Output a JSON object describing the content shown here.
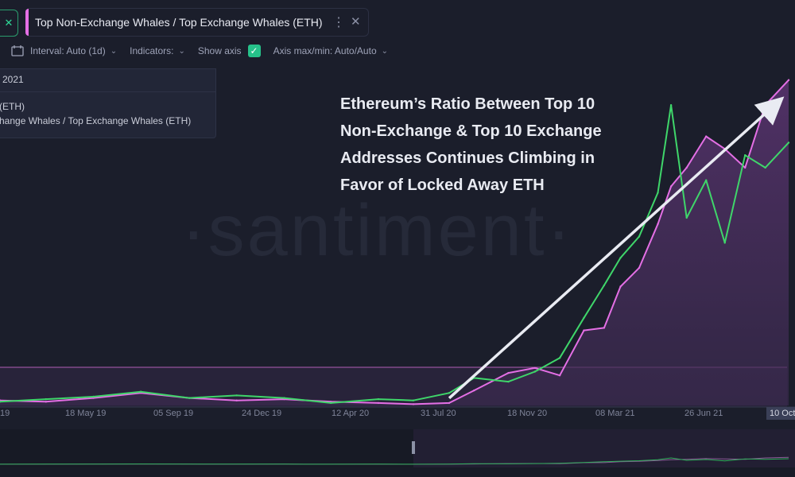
{
  "header": {
    "close_left_icon": "close-icon",
    "tab_title": "Top Non-Exchange Whales / Top Exchange Whales (ETH)",
    "tab_menu_icon": "more-vertical-icon",
    "tab_close_icon": "close-icon",
    "tab_accent": "#e46fe5"
  },
  "toolbar": {
    "interval_label": "Interval: Auto (1d)",
    "indicators_label": "Indicators:",
    "show_axis_label": "Show axis",
    "show_axis_checked": true,
    "axis_label": "Axis max/min: Auto/Auto"
  },
  "legend": {
    "date": "2021",
    "series1": "(ETH)",
    "series2": "xchange Whales / Top Exchange Whales (ETH)"
  },
  "annotation": {
    "lines": [
      "Ethereum’s Ratio Between Top 10",
      "Non-Exchange & Top 10 Exchange",
      "Addresses Continues Climbing in",
      "Favor of Locked Away ETH"
    ]
  },
  "watermark": "·santiment·",
  "colors": {
    "ratio": "#e46fe5",
    "price": "#3fd66a",
    "background": "#1b1e2b",
    "fill": "#4a2f5e"
  },
  "chart_data": {
    "type": "line",
    "x_tick_labels": [
      "19",
      "18 May 19",
      "05 Sep 19",
      "24 Dec 19",
      "12 Apr 20",
      "31 Jul 20",
      "18 Nov 20",
      "08 Mar 21",
      "26 Jun 21",
      "10 Oct"
    ],
    "last_date_label": "10 Oct",
    "x": [
      "2019-01-01",
      "2019-03-01",
      "2019-05-01",
      "2019-07-01",
      "2019-09-01",
      "2019-11-01",
      "2020-01-01",
      "2020-03-01",
      "2020-05-01",
      "2020-06-15",
      "2020-07-31",
      "2020-09-01",
      "2020-10-15",
      "2020-11-18",
      "2020-12-20",
      "2021-01-20",
      "2021-02-15",
      "2021-03-08",
      "2021-04-01",
      "2021-04-25",
      "2021-05-12",
      "2021-06-01",
      "2021-06-26",
      "2021-07-20",
      "2021-08-15",
      "2021-09-10",
      "2021-10-10"
    ],
    "series": [
      {
        "name": "Top Non-Exchange Whales / Top Exchange Whales (ETH)",
        "color": "#e46fe5",
        "fill": true,
        "values": [
          4,
          3,
          6,
          10,
          6,
          4,
          5,
          3,
          2,
          1,
          2,
          12,
          26,
          30,
          24,
          60,
          62,
          95,
          110,
          145,
          175,
          190,
          215,
          205,
          190,
          240,
          260
        ]
      },
      {
        "name": "(ETH)",
        "color": "#3fd66a",
        "fill": false,
        "values": [
          3,
          5,
          7,
          11,
          6,
          8,
          6,
          2,
          5,
          4,
          10,
          22,
          19,
          27,
          38,
          70,
          96,
          118,
          135,
          170,
          240,
          150,
          180,
          130,
          200,
          190,
          210
        ]
      }
    ],
    "ylim": [
      0,
      270
    ],
    "annotation_arrow": {
      "from": "2020-07-31",
      "to": "2021-10-10"
    }
  }
}
